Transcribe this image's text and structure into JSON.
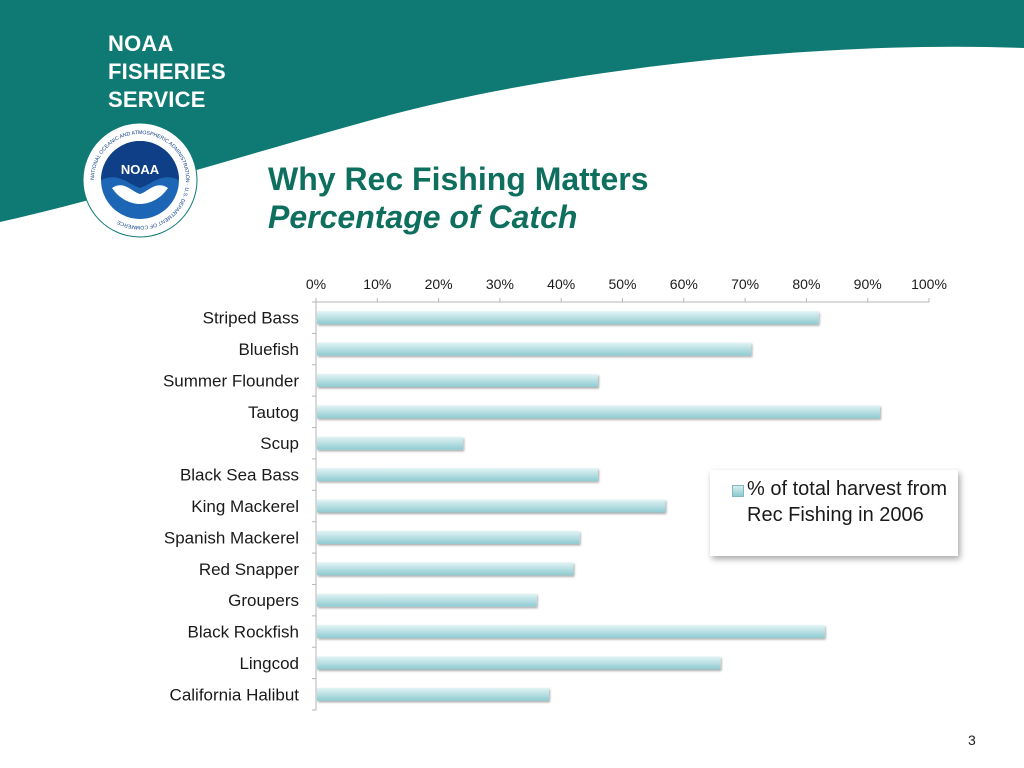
{
  "header": {
    "brand_lines": [
      "NOAA",
      "FISHERIES",
      "SERVICE"
    ],
    "logo_text": "NOAA",
    "logo_ring_text": "NATIONAL OCEANIC AND ATMOSPHERIC ADMINISTRATION · U.S. DEPARTMENT OF COMMERCE"
  },
  "title": {
    "main": "Why Rec Fishing Matters",
    "sub": "Percentage of Catch"
  },
  "colors": {
    "band": "#0e7a73",
    "title": "#0e6f5f",
    "bar_light": "#e3f4f5",
    "bar_dark": "#8ecbd1"
  },
  "chart_data": {
    "type": "bar",
    "orientation": "horizontal",
    "categories": [
      "Striped Bass",
      "Bluefish",
      "Summer Flounder",
      "Tautog",
      "Scup",
      "Black Sea Bass",
      "King Mackerel",
      "Spanish Mackerel",
      "Red Snapper",
      "Groupers",
      "Black Rockfish",
      "Lingcod",
      "California Halibut"
    ],
    "series": [
      {
        "name": "% of total harvest from Rec Fishing in 2006",
        "values": [
          82,
          71,
          46,
          92,
          24,
          46,
          57,
          43,
          42,
          36,
          83,
          66,
          38
        ]
      }
    ],
    "xlim": [
      0,
      100
    ],
    "x_ticks": [
      "0%",
      "10%",
      "20%",
      "30%",
      "40%",
      "50%",
      "60%",
      "70%",
      "80%",
      "90%",
      "100%"
    ],
    "x_axis_position": "top",
    "grid": false,
    "legend_position": "right"
  },
  "legend": {
    "label": "% of total harvest from Rec Fishing in 2006"
  },
  "page_number": "3"
}
